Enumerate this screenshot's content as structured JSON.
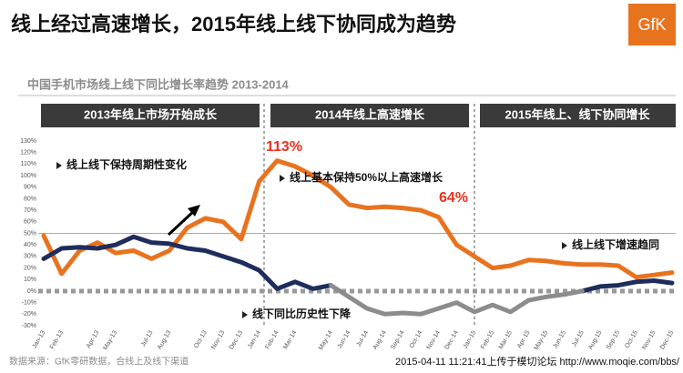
{
  "title": "线上经过高速增长，2015年线上线下协同成为趋势",
  "logo": "GfK",
  "chart_data": {
    "type": "line",
    "title": "中国手机市场线上线下同比增长率趋势 2013-2014",
    "phases": [
      "2013年线上市场开始成长",
      "2014年线上高速增长",
      "2015年线上、线下协同增长"
    ],
    "categories": [
      "Jan-13",
      "Feb-13",
      null,
      "Apr-13",
      "May-13",
      null,
      "Jul-13",
      "Aug-13",
      null,
      "Oct-13",
      "Nov-13",
      "Dec-13",
      "Jan-14",
      "Feb-14",
      "Mar-14",
      null,
      "May-14",
      "Jun-14",
      "Jul-14",
      "Aug-14",
      "Sep-14",
      "Oct-14",
      "Nov-14",
      "Dec-14",
      "Jan-15",
      "Feb-15",
      "Mar-15",
      "Apr-15",
      "May-15",
      "Jun-15",
      "Jul-15",
      "Aug-15",
      "Sep-15",
      "Oct-15",
      "Nov-15",
      "Dec-15"
    ],
    "series": [
      {
        "color": "#e8731f",
        "values": [
          48,
          15,
          35,
          42,
          33,
          35,
          28,
          35,
          55,
          63,
          60,
          45,
          95,
          113,
          108,
          100,
          90,
          75,
          72,
          73,
          72,
          70,
          64,
          40,
          30,
          20,
          22,
          27,
          26,
          24,
          23,
          23,
          22,
          12,
          14,
          16
        ]
      },
      {
        "color": "#1f2d5c",
        "values": [
          28,
          37,
          38,
          37,
          40,
          47,
          42,
          41,
          37,
          35,
          30,
          25,
          18,
          2,
          8,
          2,
          5,
          null,
          null,
          null,
          null,
          null,
          null,
          null,
          null,
          null,
          null,
          null,
          null,
          null,
          0,
          4,
          5,
          8,
          9,
          7
        ]
      },
      {
        "color": "#8c8c8c",
        "values": [
          null,
          null,
          null,
          null,
          null,
          null,
          null,
          null,
          null,
          null,
          null,
          null,
          null,
          null,
          null,
          null,
          5,
          -5,
          -15,
          -20,
          -19,
          -20,
          -15,
          -10,
          -18,
          -12,
          -18,
          -8,
          -5,
          -3,
          0,
          null,
          null,
          null,
          null,
          null
        ]
      }
    ],
    "ylim": [
      -30,
      130
    ],
    "yticks": [
      {
        "value": -30,
        "label": "-30%"
      },
      {
        "value": -20,
        "label": "-20%"
      },
      {
        "value": -10,
        "label": "-10%"
      },
      {
        "value": 0,
        "label": "0%"
      },
      {
        "value": 10,
        "label": "10%"
      },
      {
        "value": 20,
        "label": "20%"
      },
      {
        "value": 30,
        "label": "30%"
      },
      {
        "value": 40,
        "label": "40%"
      },
      {
        "value": 50,
        "label": "50%"
      },
      {
        "value": 60,
        "label": "60%"
      },
      {
        "value": 70,
        "label": "70%"
      },
      {
        "value": 80,
        "label": "80%"
      },
      {
        "value": 90,
        "label": "90%"
      },
      {
        "value": 100,
        "label": "100%"
      },
      {
        "value": 110,
        "label": "110%"
      },
      {
        "value": 120,
        "label": "120%"
      },
      {
        "value": 130,
        "label": "130%"
      }
    ],
    "reference_lines": [
      {
        "value": 50,
        "style": "solid"
      },
      {
        "value": 0,
        "style": "dotted"
      }
    ],
    "annotations": [
      "线上线下保持周期性变化",
      "线上基本保持50%以上高速增长",
      "线上线下增速趋同",
      "线下同比历史性下降",
      "113%",
      "64%"
    ],
    "source": "数据来源：GfK零研数据，合线上及线下渠道"
  },
  "watermark": "2015-04-11 11:21:41上传于模切论坛 http://www.moqie.com/bbs/"
}
